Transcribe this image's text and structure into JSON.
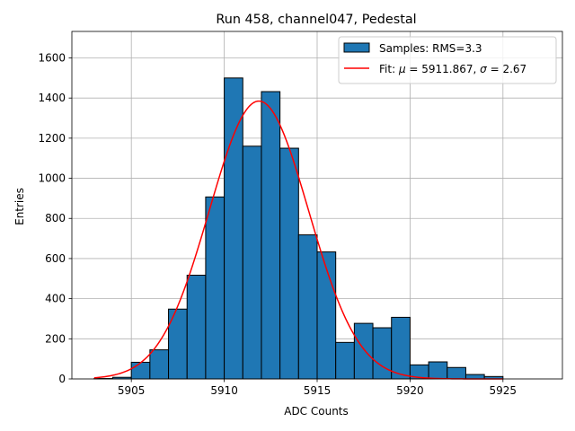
{
  "chart_data": {
    "type": "bar",
    "title": "Run 458, channel047, Pedestal",
    "xlabel": "ADC Counts",
    "ylabel": "Entries",
    "xlim": [
      5901.8,
      5928.2
    ],
    "ylim": [
      0,
      1732
    ],
    "xticks": [
      5905,
      5910,
      5915,
      5920,
      5925
    ],
    "yticks": [
      0,
      200,
      400,
      600,
      800,
      1000,
      1200,
      1400,
      1600
    ],
    "grid": true,
    "legend_position": "top-right",
    "bin_width": 1,
    "bins": [
      {
        "x0": 5903,
        "value": 2
      },
      {
        "x0": 5904,
        "value": 8
      },
      {
        "x0": 5905,
        "value": 83
      },
      {
        "x0": 5906,
        "value": 145
      },
      {
        "x0": 5907,
        "value": 348
      },
      {
        "x0": 5908,
        "value": 517
      },
      {
        "x0": 5909,
        "value": 907
      },
      {
        "x0": 5910,
        "value": 1500
      },
      {
        "x0": 5911,
        "value": 1160
      },
      {
        "x0": 5912,
        "value": 1432
      },
      {
        "x0": 5913,
        "value": 1150
      },
      {
        "x0": 5914,
        "value": 718
      },
      {
        "x0": 5915,
        "value": 633
      },
      {
        "x0": 5916,
        "value": 182
      },
      {
        "x0": 5917,
        "value": 277
      },
      {
        "x0": 5918,
        "value": 255
      },
      {
        "x0": 5919,
        "value": 307
      },
      {
        "x0": 5920,
        "value": 70
      },
      {
        "x0": 5921,
        "value": 85
      },
      {
        "x0": 5922,
        "value": 57
      },
      {
        "x0": 5923,
        "value": 22
      },
      {
        "x0": 5924,
        "value": 12
      }
    ],
    "fit": {
      "mu": 5911.867,
      "sigma": 2.67,
      "amplitude": 1385,
      "x_range": [
        5903,
        5925
      ]
    },
    "legend": [
      {
        "label": "Samples: RMS=3.3",
        "kind": "bar"
      },
      {
        "label_prefix": "Fit: ",
        "label_mu_symbol": "μ",
        "label_mu_value": " = 5911.867, ",
        "label_sigma_symbol": "σ",
        "label_sigma_value": " = 2.67",
        "kind": "line"
      }
    ],
    "colors": {
      "bar_fill": "#1f77b4",
      "bar_edge": "#000000",
      "fit_line": "#ff0000",
      "grid": "#b0b0b0"
    }
  }
}
